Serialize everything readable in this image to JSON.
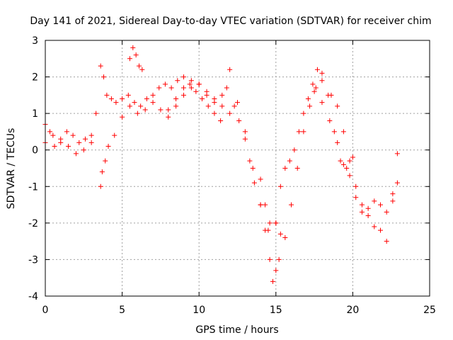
{
  "chart_data": {
    "type": "scatter",
    "title": "Day 141 of 2021, Sidereal Day-to-day VTEC variation (SDTVAR) for receiver chim",
    "xlabel": "GPS time / hours",
    "ylabel": "SDTVAR / TECUs",
    "xlim": [
      0,
      25
    ],
    "ylim": [
      -4,
      3
    ],
    "xticks": [
      0,
      5,
      10,
      15,
      20,
      25
    ],
    "yticks": [
      -4,
      -3,
      -2,
      -1,
      0,
      1,
      2,
      3
    ],
    "xtick_labels": [
      "0",
      "5",
      "10",
      "15",
      "20",
      "25"
    ],
    "ytick_labels": [
      "-4",
      "-3",
      "-2",
      "-1",
      "0",
      "1",
      "2",
      "3"
    ],
    "grid": true,
    "marker": "+",
    "color": "#ff0000",
    "series": [
      {
        "name": "trace-1",
        "x": [
          0,
          0.3,
          0.6,
          1.0,
          1.4,
          1.8,
          2.2,
          2.6,
          3.0,
          3.3
        ],
        "y": [
          0.7,
          0.5,
          0.1,
          0.2,
          0.5,
          0.4,
          0.2,
          0.3,
          0.4,
          1.0
        ]
      },
      {
        "name": "trace-2",
        "x": [
          0.0,
          0.5,
          1.0,
          1.5,
          2.0,
          2.5,
          3.0
        ],
        "y": [
          0.2,
          0.4,
          0.3,
          0.1,
          -0.1,
          0.0,
          0.2
        ]
      },
      {
        "name": "trace-3",
        "x": [
          3.6,
          3.7,
          3.9,
          4.1,
          4.5,
          5.0,
          5.5,
          6.0,
          6.5,
          7.0,
          7.5,
          8.0,
          8.5,
          9.0,
          9.5,
          10.0,
          10.5,
          11.0,
          11.5,
          12.0
        ],
        "y": [
          -1.0,
          -0.6,
          -0.3,
          0.1,
          0.4,
          0.9,
          1.2,
          1.0,
          1.1,
          1.3,
          1.1,
          0.9,
          1.2,
          1.5,
          1.7,
          1.8,
          1.6,
          1.4,
          1.2,
          1.0
        ]
      },
      {
        "name": "trace-4",
        "x": [
          3.6,
          3.8,
          4.0,
          4.3,
          4.6,
          5.0,
          5.4,
          5.8,
          6.2,
          6.6,
          7.0,
          7.4,
          7.8,
          8.2,
          8.6,
          9.0,
          9.4,
          9.8,
          10.2,
          10.6,
          11.0,
          11.4
        ],
        "y": [
          2.3,
          2.0,
          1.5,
          1.4,
          1.3,
          1.4,
          1.5,
          1.3,
          1.2,
          1.4,
          1.5,
          1.7,
          1.8,
          1.7,
          1.9,
          2.0,
          1.8,
          1.6,
          1.4,
          1.2,
          1.0,
          0.8
        ]
      },
      {
        "name": "trace-5",
        "x": [
          5.5,
          5.7,
          5.9,
          6.1,
          6.3
        ],
        "y": [
          2.5,
          2.8,
          2.6,
          2.3,
          2.2
        ]
      },
      {
        "name": "trace-6",
        "x": [
          8.0,
          8.5,
          9.0,
          9.5,
          10.0,
          10.5,
          11.0,
          11.5,
          11.8
        ],
        "y": [
          1.1,
          1.4,
          1.7,
          1.9,
          1.8,
          1.5,
          1.3,
          1.5,
          1.7
        ]
      },
      {
        "name": "trace-7",
        "x": [
          12.0,
          12.3,
          12.6,
          13.0,
          13.3,
          13.6,
          14.0,
          14.3,
          14.6,
          14.8,
          15.0,
          15.2
        ],
        "y": [
          2.2,
          1.2,
          0.8,
          0.3,
          -0.3,
          -0.9,
          -1.5,
          -2.2,
          -3.0,
          -3.6,
          -3.3,
          -3.0
        ]
      },
      {
        "name": "trace-8",
        "x": [
          12.5,
          13.0,
          13.5,
          14.0,
          14.5,
          15.0,
          15.3,
          15.6,
          15.9,
          16.2,
          16.5,
          16.8,
          17.1,
          17.4,
          17.7,
          18.0
        ],
        "y": [
          1.3,
          0.5,
          -0.5,
          -1.5,
          -2.2,
          -2.0,
          -1.0,
          -0.5,
          -0.3,
          0.0,
          0.5,
          1.0,
          1.4,
          1.8,
          2.2,
          1.9
        ]
      },
      {
        "name": "trace-9",
        "x": [
          14.0,
          14.3,
          14.6,
          15.0,
          15.3,
          15.6,
          16.0,
          16.4,
          16.8,
          17.2,
          17.6,
          18.0,
          18.4,
          18.8,
          19.2,
          19.6,
          20.0
        ],
        "y": [
          -0.8,
          -1.5,
          -2.0,
          -2.0,
          -2.3,
          -2.4,
          -1.5,
          -0.5,
          0.5,
          1.2,
          1.7,
          2.1,
          1.5,
          0.5,
          -0.3,
          -0.5,
          -0.2
        ]
      },
      {
        "name": "trace-10",
        "x": [
          17.5,
          18.0,
          18.5,
          19.0,
          19.4,
          19.8,
          20.2,
          20.6,
          21.0,
          21.4,
          21.8,
          22.2,
          22.6,
          22.9
        ],
        "y": [
          1.6,
          1.3,
          0.8,
          0.2,
          -0.4,
          -0.7,
          -1.3,
          -1.7,
          -1.8,
          -2.1,
          -2.2,
          -2.5,
          -1.4,
          -0.1
        ]
      },
      {
        "name": "trace-11",
        "x": [
          18.6,
          19.0,
          19.4,
          19.8,
          20.2,
          20.6,
          21.0,
          21.4,
          21.8,
          22.2,
          22.6,
          22.9
        ],
        "y": [
          1.5,
          1.2,
          0.5,
          -0.3,
          -1.0,
          -1.5,
          -1.6,
          -1.4,
          -1.5,
          -1.7,
          -1.2,
          -0.9
        ]
      }
    ]
  }
}
